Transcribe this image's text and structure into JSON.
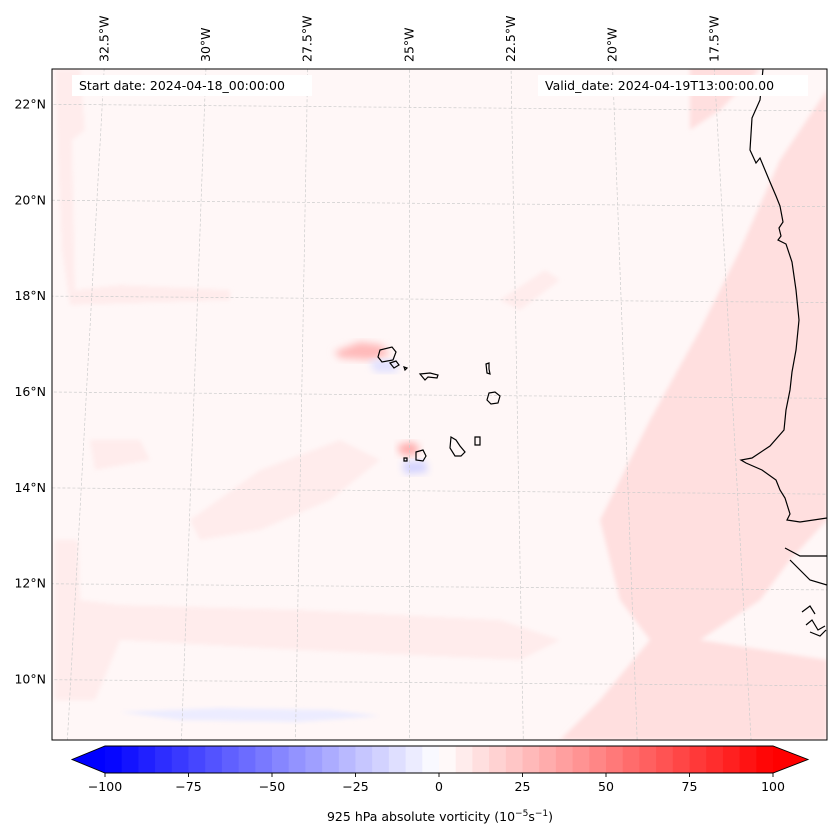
{
  "chart_data": {
    "type": "heatmap",
    "title": "",
    "variable": "925 hPa absolute vorticity",
    "units_label": "925 hPa absolute vorticity (10^-5 s^-1)",
    "colorbar_label_prefix": "925 hPa absolute vorticity (10",
    "colorbar_label_exp1": "−5",
    "colorbar_label_mid": "s",
    "colorbar_label_exp2": "−1",
    "colorbar_label_suffix": ")",
    "annotations": {
      "start_date": "Start date: 2024-04-18_00:00:00",
      "valid_date": "Valid_date: 2024-04-19T13:00:00.00"
    },
    "colormap": "bwr",
    "colorbar": {
      "vmin": -100,
      "vmax": 100,
      "step": 5,
      "extend": "both",
      "orientation": "horizontal",
      "ticks": [
        -100,
        -75,
        -50,
        -25,
        0,
        25,
        50,
        75,
        100
      ],
      "tick_labels": [
        "−100",
        "−75",
        "−50",
        "−25",
        "0",
        "25",
        "50",
        "75",
        "100"
      ]
    },
    "x_axis": {
      "position": "top",
      "tick_labels": [
        "32.5°W",
        "30°W",
        "27.5°W",
        "25°W",
        "22.5°W",
        "20°W",
        "17.5°W"
      ],
      "values": [
        -32.5,
        -30,
        -27.5,
        -25,
        -22.5,
        -20,
        -17.5
      ]
    },
    "y_axis": {
      "position": "left",
      "tick_labels": [
        "22°N",
        "20°N",
        "18°N",
        "16°N",
        "14°N",
        "12°N",
        "10°N"
      ],
      "values": [
        22,
        20,
        18,
        16,
        14,
        12,
        10
      ]
    },
    "extent": {
      "lon": [
        -33.3,
        -15.3
      ],
      "lat": [
        8.8,
        22.8
      ]
    },
    "grid": true,
    "background_value": 2,
    "features": [
      {
        "name": "positive-band-west-edge",
        "value": 8
      },
      {
        "name": "positive-band-coast-diagonal",
        "value": 10
      },
      {
        "name": "positive-band-southwest",
        "value": 8
      },
      {
        "name": "santo-antao-positive-lobe",
        "value": 25
      },
      {
        "name": "santo-antao-negative-lobe",
        "value": -12
      },
      {
        "name": "fogo-positive-lobe",
        "value": 30
      },
      {
        "name": "fogo-negative-lobe",
        "value": -20
      },
      {
        "name": "southern-negative-streak",
        "value": -8
      }
    ]
  }
}
